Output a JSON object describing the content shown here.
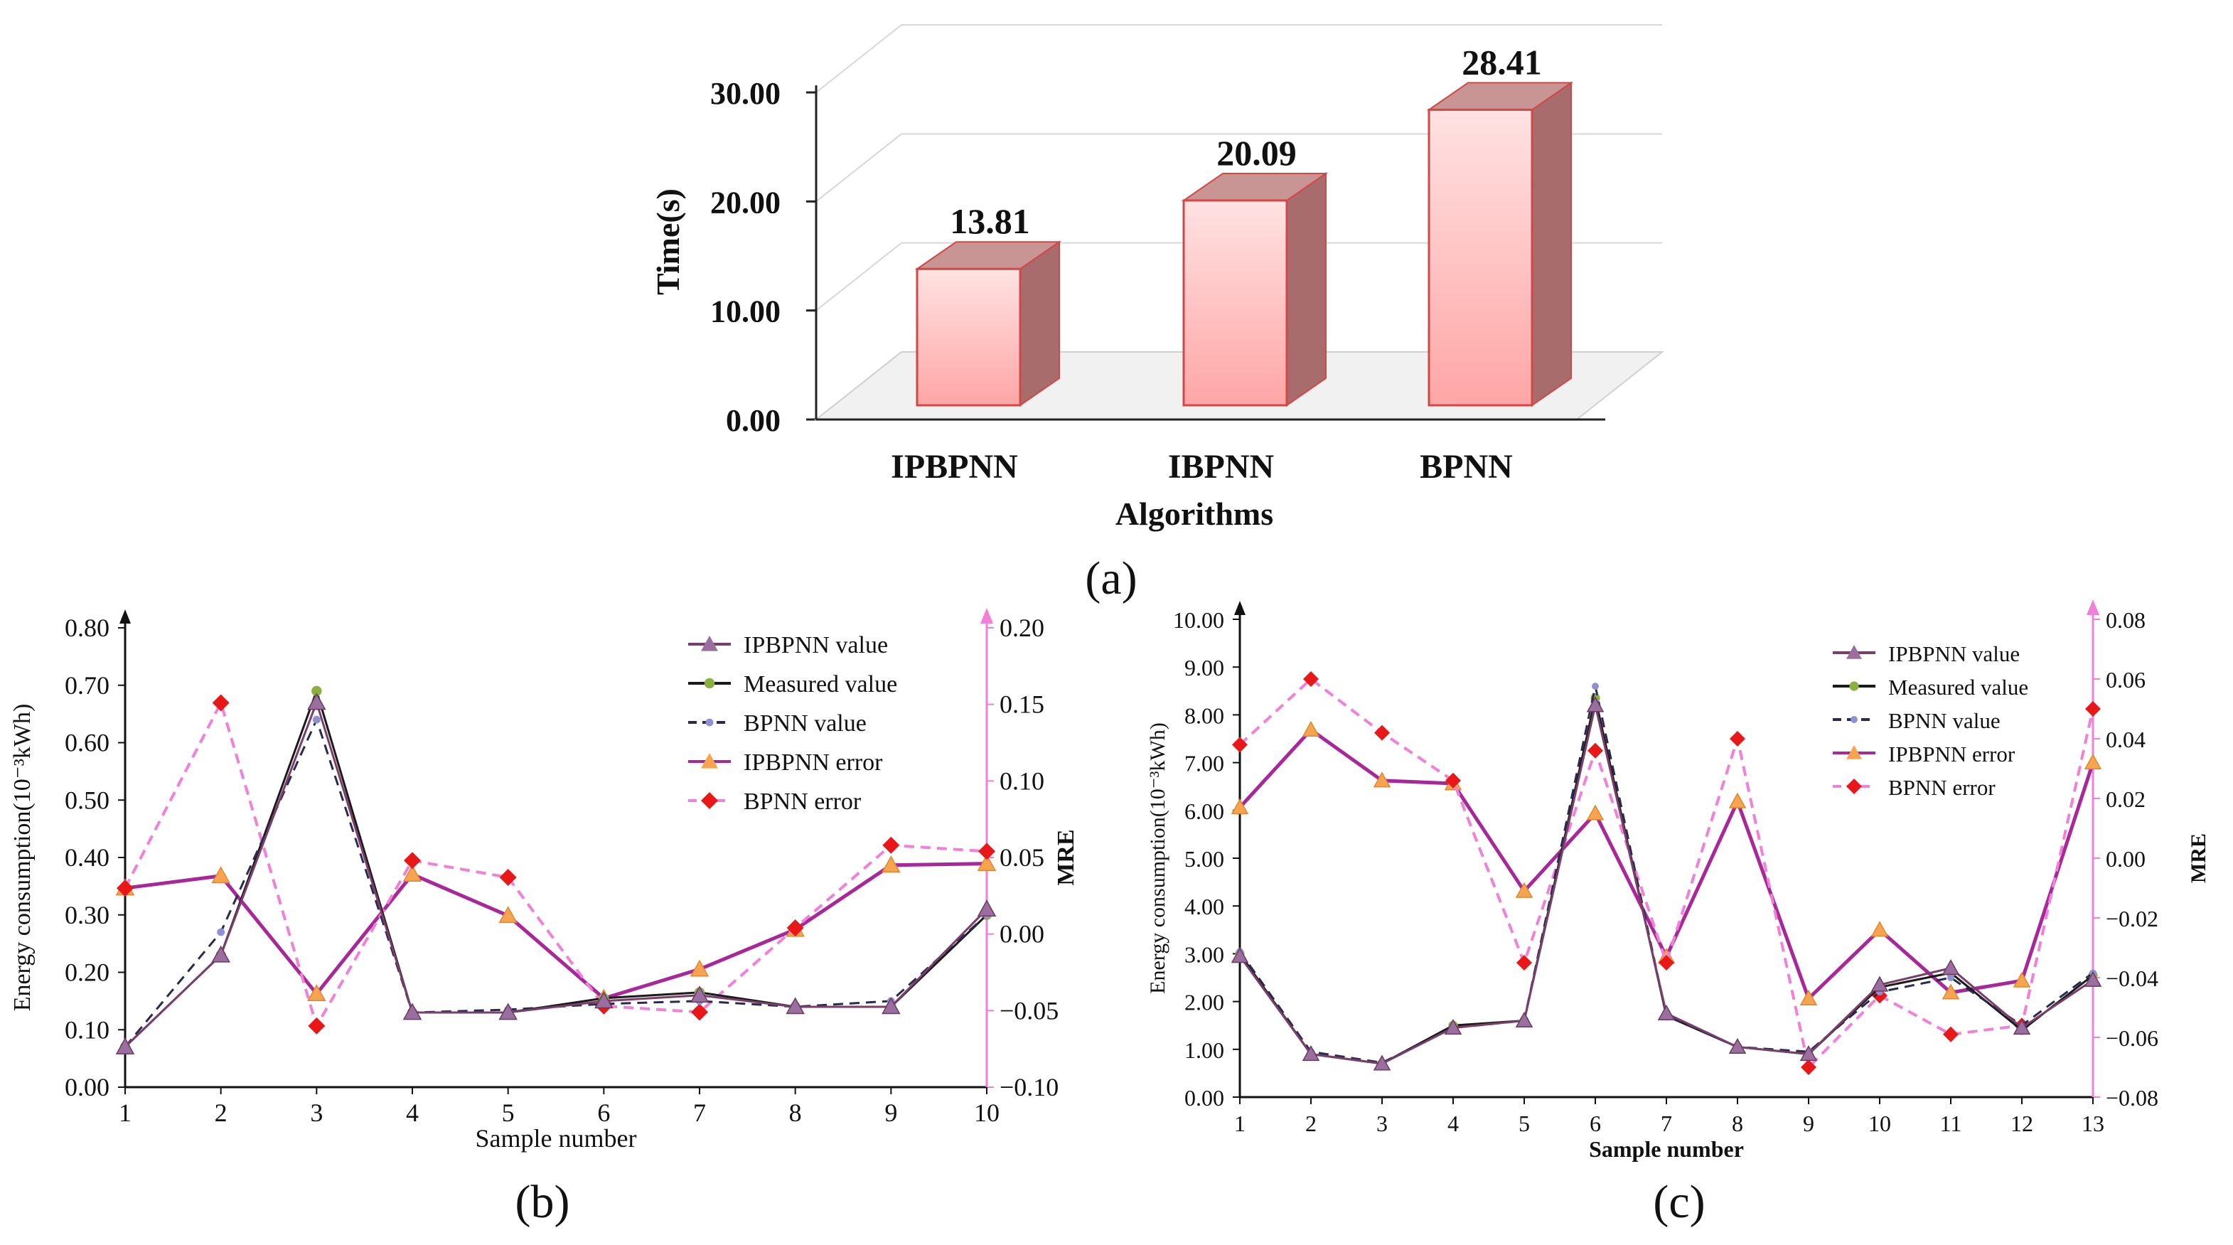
{
  "chart_data": [
    {
      "panel": "(a)",
      "type": "bar",
      "categories": [
        "IPBPNN",
        "IBPNN",
        "BPNN"
      ],
      "values": [
        13.81,
        20.09,
        28.41
      ],
      "data_labels": [
        "13.81",
        "20.09",
        "28.41"
      ],
      "xlabel": "Algorithms",
      "ylabel": "Time(s)",
      "ylim": [
        0,
        30
      ],
      "yticks": [
        "0.00",
        "10.00",
        "20.00",
        "30.00"
      ],
      "style": "3d",
      "grid": true,
      "colors": {
        "bar_front": "#ffc8c8",
        "bar_side": "#a86c6c",
        "bar_top": "#c89494",
        "edge": "#d04848"
      }
    },
    {
      "panel": "(b)",
      "type": "line",
      "xlabel": "Sample number",
      "ylabel": "Energy consumption(10⁻³kWh)",
      "y2label": "MRE",
      "x": [
        1,
        2,
        3,
        4,
        5,
        6,
        7,
        8,
        9,
        10
      ],
      "ylim": [
        0,
        0.8
      ],
      "y2lim": [
        -0.1,
        0.2
      ],
      "yticks": [
        "0.00",
        "0.10",
        "0.20",
        "0.30",
        "0.40",
        "0.50",
        "0.60",
        "0.70",
        "0.80"
      ],
      "y2ticks": [
        "−0.10",
        "−0.05",
        "0.00",
        "0.05",
        "0.10",
        "0.15",
        "0.20"
      ],
      "legend_position": "top-right",
      "series": [
        {
          "name": "IPBPNN value",
          "axis": "left",
          "color": "#7a3f68",
          "marker": "triangle",
          "dash": false,
          "values": [
            0.07,
            0.23,
            0.67,
            0.13,
            0.13,
            0.15,
            0.16,
            0.14,
            0.14,
            0.31
          ]
        },
        {
          "name": "Measured value",
          "axis": "left",
          "color": "#1a1a1a",
          "marker": "circle",
          "dash": false,
          "values": [
            0.07,
            0.23,
            0.69,
            0.13,
            0.13,
            0.155,
            0.165,
            0.14,
            0.14,
            0.3
          ]
        },
        {
          "name": "BPNN value",
          "axis": "left",
          "color": "#2a2a50",
          "marker": "dot",
          "dash": true,
          "values": [
            0.07,
            0.27,
            0.64,
            0.13,
            0.135,
            0.145,
            0.15,
            0.14,
            0.15,
            0.3
          ]
        },
        {
          "name": "IPBPNN error",
          "axis": "right",
          "color": "#a8289a",
          "marker": "triangle-orange",
          "dash": false,
          "values": [
            0.03,
            0.038,
            -0.039,
            0.039,
            0.012,
            -0.042,
            -0.023,
            0.003,
            0.045,
            0.046
          ]
        },
        {
          "name": "BPNN error",
          "axis": "right",
          "color": "#f080d8",
          "marker": "diamond",
          "dash": true,
          "values": [
            0.03,
            0.151,
            -0.06,
            0.048,
            0.037,
            -0.047,
            -0.051,
            0.004,
            0.058,
            0.054
          ]
        }
      ]
    },
    {
      "panel": "(c)",
      "type": "line",
      "xlabel": "Sample number",
      "ylabel": "Energy consumption(10⁻³kWh)",
      "y2label": "MRE",
      "x": [
        1,
        2,
        3,
        4,
        5,
        6,
        7,
        8,
        9,
        10,
        11,
        12,
        13
      ],
      "ylim": [
        0,
        10
      ],
      "y2lim": [
        -0.08,
        0.08
      ],
      "yticks": [
        "0.00",
        "1.00",
        "2.00",
        "3.00",
        "4.00",
        "5.00",
        "6.00",
        "7.00",
        "8.00",
        "9.00",
        "10.00"
      ],
      "y2ticks": [
        "−0.08",
        "−0.06",
        "−0.04",
        "−0.02",
        "0.00",
        "0.02",
        "0.04",
        "0.06",
        "0.08"
      ],
      "legend_position": "top-center",
      "series": [
        {
          "name": "IPBPNN value",
          "axis": "left",
          "color": "#7a3f68",
          "marker": "triangle",
          "dash": false,
          "values": [
            2.95,
            0.9,
            0.7,
            1.45,
            1.6,
            8.2,
            1.75,
            1.05,
            0.9,
            2.35,
            2.7,
            1.45,
            2.45
          ]
        },
        {
          "name": "Measured value",
          "axis": "left",
          "color": "#1a1a1a",
          "marker": "circle",
          "dash": false,
          "values": [
            3.0,
            0.9,
            0.7,
            1.5,
            1.6,
            8.35,
            1.7,
            1.05,
            0.9,
            2.3,
            2.6,
            1.4,
            2.55
          ]
        },
        {
          "name": "BPNN value",
          "axis": "left",
          "color": "#2a2a50",
          "marker": "dot",
          "dash": true,
          "values": [
            3.05,
            0.95,
            0.72,
            1.45,
            1.6,
            8.6,
            1.7,
            1.05,
            0.95,
            2.2,
            2.5,
            1.5,
            2.6
          ]
        },
        {
          "name": "IPBPNN error",
          "axis": "right",
          "color": "#a8289a",
          "marker": "triangle-orange",
          "dash": false,
          "values": [
            0.017,
            0.043,
            0.026,
            0.025,
            -0.011,
            0.015,
            -0.033,
            0.019,
            -0.047,
            -0.024,
            -0.045,
            -0.041,
            0.032
          ]
        },
        {
          "name": "BPNN error",
          "axis": "right",
          "color": "#f080d8",
          "marker": "diamond",
          "dash": true,
          "values": [
            0.038,
            0.06,
            0.042,
            0.026,
            -0.035,
            0.036,
            -0.035,
            0.04,
            -0.07,
            -0.046,
            -0.059,
            -0.056,
            0.05
          ]
        }
      ]
    }
  ]
}
